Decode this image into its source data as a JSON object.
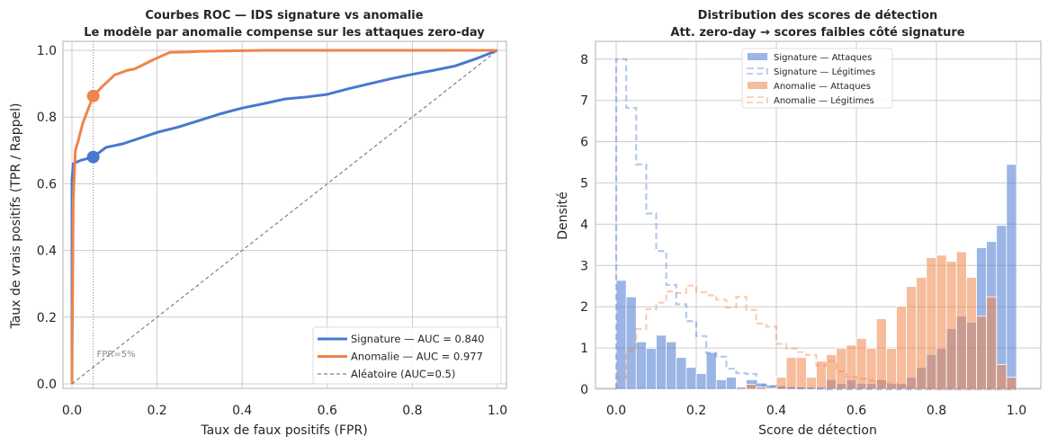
{
  "colors": {
    "signature": "#4878d0",
    "anomalie": "#ee854a",
    "random": "#808080",
    "grid": "#cccccc"
  },
  "chart_data": [
    {
      "type": "line",
      "title": [
        "Courbes ROC — IDS signature vs anomalie",
        "Le modèle par anomalie compense sur les attaques zero-day"
      ],
      "xlabel": "Taux de faux positifs (FPR)",
      "ylabel": "Taux de vrais positifs (TPR / Rappel)",
      "xlim": [
        0,
        1
      ],
      "ylim": [
        0,
        1
      ],
      "xticks": [
        "0.0",
        "0.2",
        "0.4",
        "0.6",
        "0.8",
        "1.0"
      ],
      "yticks": [
        "0.0",
        "0.2",
        "0.4",
        "0.6",
        "0.8",
        "1.0"
      ],
      "grid": true,
      "legend_position": "bottom-right",
      "series": [
        {
          "name": "Signature — AUC = 0.840",
          "key": "signature",
          "x": [
            0,
            0,
            0.003,
            0.02,
            0.05,
            0.08,
            0.12,
            0.2,
            0.25,
            0.3,
            0.35,
            0.4,
            0.45,
            0.5,
            0.55,
            0.6,
            0.65,
            0.7,
            0.75,
            0.8,
            0.85,
            0.9,
            0.95,
            1
          ],
          "y": [
            0,
            0.61,
            0.66,
            0.67,
            0.68,
            0.709,
            0.72,
            0.754,
            0.77,
            0.79,
            0.81,
            0.827,
            0.84,
            0.854,
            0.86,
            0.868,
            0.885,
            0.9,
            0.915,
            0.928,
            0.94,
            0.953,
            0.975,
            1
          ]
        },
        {
          "name": "Anomalie — AUC = 0.977",
          "key": "anomalie",
          "x": [
            0,
            0.003,
            0.008,
            0.015,
            0.025,
            0.04,
            0.05,
            0.07,
            0.1,
            0.13,
            0.147,
            0.19,
            0.23,
            0.27,
            0.3,
            0.45,
            1
          ],
          "y": [
            0,
            0.55,
            0.7,
            0.73,
            0.78,
            0.83,
            0.863,
            0.89,
            0.926,
            0.94,
            0.944,
            0.971,
            0.994,
            0.995,
            0.997,
            1,
            1
          ]
        },
        {
          "name": "Aléatoire (AUC=0.5)",
          "key": "random",
          "x": [
            0,
            1
          ],
          "y": [
            0,
            1
          ]
        }
      ],
      "markers": [
        {
          "series": "signature",
          "x": 0.05,
          "y": 0.68
        },
        {
          "series": "anomalie",
          "x": 0.05,
          "y": 0.863
        }
      ],
      "annotation": {
        "text": "FPR=5%",
        "x": 0.05
      }
    },
    {
      "type": "histogram",
      "title": [
        "Distribution des scores de détection",
        "Att. zero-day → scores faibles côté signature"
      ],
      "xlabel": "Score de détection",
      "ylabel": "Densité",
      "xlim": [
        0,
        1
      ],
      "ylim": [
        0,
        8.4
      ],
      "xticks": [
        "0.0",
        "0.2",
        "0.4",
        "0.6",
        "0.8",
        "1.0"
      ],
      "yticks": [
        "0",
        "1",
        "2",
        "3",
        "4",
        "5",
        "6",
        "7",
        "8"
      ],
      "grid": true,
      "legend_position": "top-center",
      "bin_width": 0.025,
      "series": [
        {
          "name": "Signature — Attaques",
          "key": "signature",
          "style": "bar",
          "values": [
            2.64,
            2.24,
            1.15,
            0.99,
            1.31,
            1.15,
            0.77,
            0.53,
            0.38,
            0.89,
            0.23,
            0.29,
            0.05,
            0.23,
            0.15,
            0.1,
            0.06,
            0.05,
            0.05,
            0.04,
            0.05,
            0.23,
            0.14,
            0.23,
            0.14,
            0.14,
            0.23,
            0.14,
            0.14,
            0.29,
            0.53,
            0.84,
            0.99,
            1.47,
            1.77,
            1.62,
            3.43,
            3.58,
            3.97,
            5.45
          ]
        },
        {
          "name": "Signature — Légitimes",
          "key": "signature",
          "style": "step",
          "values": [
            8.0,
            6.82,
            5.45,
            4.26,
            3.35,
            2.53,
            2.06,
            1.65,
            1.29,
            0.88,
            0.79,
            0.5,
            0.39,
            0.37,
            0.1,
            0.08,
            0.05,
            0.03,
            0.02,
            0.02,
            0.01,
            0,
            0,
            0,
            0,
            0,
            0,
            0,
            0,
            0,
            0,
            0,
            0,
            0,
            0,
            0,
            0,
            0,
            0,
            0
          ]
        },
        {
          "name": "Anomalie — Attaques",
          "key": "anomalie",
          "style": "bar",
          "values": [
            0,
            0,
            0,
            0,
            0,
            0,
            0,
            0,
            0,
            0,
            0,
            0,
            0,
            0.12,
            0.05,
            0.02,
            0.29,
            0.77,
            0.77,
            0.29,
            0.68,
            0.84,
            0.99,
            1.07,
            1.23,
            0.99,
            1.71,
            0.99,
            2.01,
            2.49,
            2.71,
            3.19,
            3.25,
            3.1,
            3.33,
            2.71,
            1.77,
            2.24,
            0.6,
            0.29
          ]
        },
        {
          "name": "Anomalie — Légitimes",
          "key": "anomalie",
          "style": "step",
          "values": [
            0.28,
            0.94,
            1.46,
            1.94,
            2.1,
            2.37,
            2.33,
            2.51,
            2.35,
            2.28,
            2.17,
            1.98,
            2.24,
            1.92,
            1.59,
            1.52,
            1.1,
            0.99,
            0.9,
            0.83,
            0.57,
            0.68,
            0.43,
            0.3,
            0.25,
            0.21,
            0.2,
            0.14,
            0.07,
            0.03,
            0.02,
            0.01,
            0,
            0,
            0,
            0,
            0,
            0,
            0,
            0
          ]
        }
      ]
    }
  ]
}
